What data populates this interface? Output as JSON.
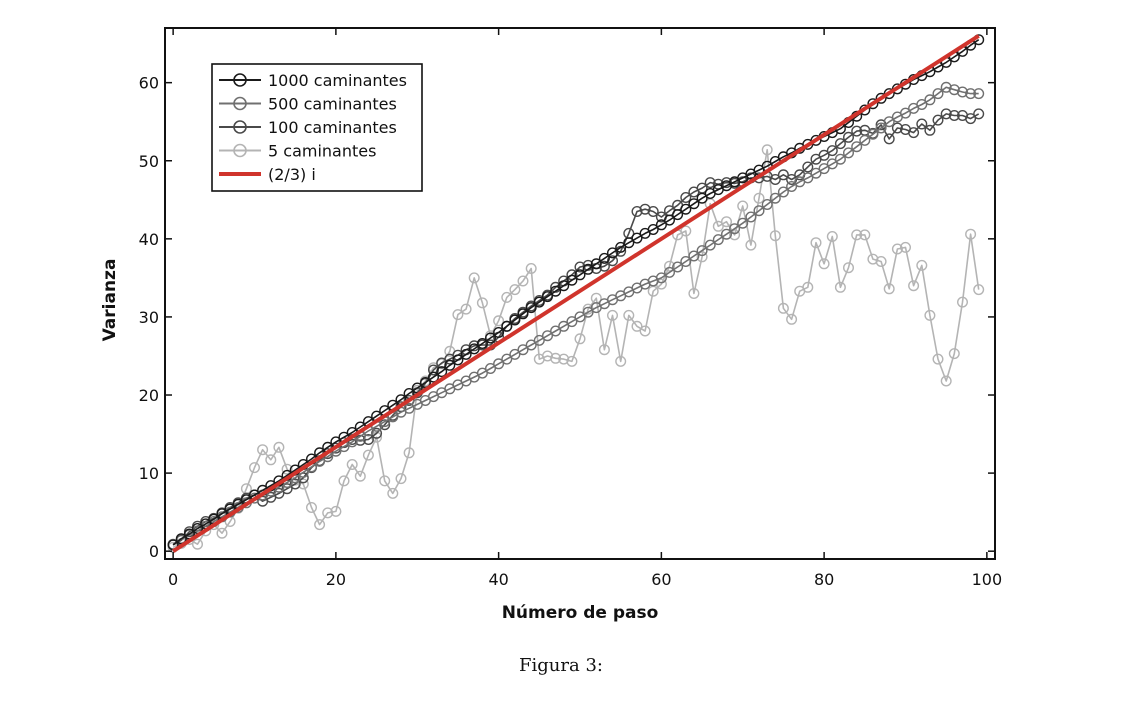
{
  "figure": {
    "caption": "Figura 3:"
  },
  "chart_data": {
    "type": "line",
    "xlabel": "Número de paso",
    "ylabel": "Varianza",
    "xlim": [
      -1,
      101
    ],
    "ylim": [
      -1,
      67
    ],
    "xticks": [
      0,
      20,
      40,
      60,
      80,
      100
    ],
    "yticks": [
      0,
      10,
      20,
      30,
      40,
      50,
      60
    ],
    "grid": false,
    "legend_position": "top-left",
    "series": [
      {
        "name": "1000 caminantes",
        "color": "#1a1a1a",
        "marker": "circle",
        "marker_fill": "none",
        "x": [
          0,
          1,
          2,
          3,
          4,
          5,
          6,
          7,
          8,
          9,
          10,
          11,
          12,
          13,
          14,
          15,
          16,
          17,
          18,
          19,
          20,
          21,
          22,
          23,
          24,
          25,
          26,
          27,
          28,
          29,
          30,
          31,
          32,
          33,
          34,
          35,
          36,
          37,
          38,
          39,
          40,
          41,
          42,
          43,
          44,
          45,
          46,
          47,
          48,
          49,
          50,
          51,
          52,
          53,
          54,
          55,
          56,
          57,
          58,
          59,
          60,
          61,
          62,
          63,
          64,
          65,
          66,
          67,
          68,
          69,
          70,
          71,
          72,
          73,
          74,
          75,
          76,
          77,
          78,
          79,
          80,
          81,
          82,
          83,
          84,
          85,
          86,
          87,
          88,
          89,
          90,
          91,
          92,
          93,
          94,
          95,
          96,
          97,
          98,
          99
        ],
        "y": [
          0.8,
          1.6,
          2.2,
          2.9,
          3.5,
          4.1,
          4.8,
          5.4,
          6.0,
          6.6,
          7.2,
          7.8,
          8.4,
          9.0,
          9.7,
          10.4,
          11.1,
          11.8,
          12.6,
          13.3,
          14.0,
          14.6,
          15.2,
          15.9,
          16.6,
          17.3,
          18.0,
          18.7,
          19.4,
          20.2,
          20.9,
          21.6,
          22.3,
          23.0,
          23.8,
          24.5,
          25.2,
          25.9,
          26.6,
          27.3,
          28.0,
          28.8,
          29.6,
          30.4,
          31.2,
          31.9,
          32.6,
          33.3,
          34.0,
          34.7,
          35.4,
          36.1,
          36.8,
          37.5,
          38.2,
          38.9,
          39.5,
          40.1,
          40.7,
          41.2,
          41.8,
          42.4,
          43.1,
          43.8,
          44.5,
          45.2,
          45.8,
          46.3,
          46.8,
          47.3,
          47.8,
          48.3,
          48.8,
          49.3,
          49.9,
          50.5,
          51.0,
          51.6,
          52.1,
          52.6,
          53.1,
          53.6,
          54.1,
          54.9,
          55.7,
          56.5,
          57.3,
          58.0,
          58.6,
          59.2,
          59.8,
          60.4,
          60.9,
          61.4,
          62.0,
          62.6,
          63.3,
          64.0,
          64.8,
          65.5
        ]
      },
      {
        "name": "500 caminantes",
        "color": "#707070",
        "marker": "circle",
        "marker_fill": "none",
        "x": [
          0,
          1,
          2,
          3,
          4,
          5,
          6,
          7,
          8,
          9,
          10,
          11,
          12,
          13,
          14,
          15,
          16,
          17,
          18,
          19,
          20,
          21,
          22,
          23,
          24,
          25,
          26,
          27,
          28,
          29,
          30,
          31,
          32,
          33,
          34,
          35,
          36,
          37,
          38,
          39,
          40,
          41,
          42,
          43,
          44,
          45,
          46,
          47,
          48,
          49,
          50,
          51,
          52,
          53,
          54,
          55,
          56,
          57,
          58,
          59,
          60,
          61,
          62,
          63,
          64,
          65,
          66,
          67,
          68,
          69,
          70,
          71,
          72,
          73,
          74,
          75,
          76,
          77,
          78,
          79,
          80,
          81,
          82,
          83,
          84,
          85,
          86,
          87,
          88,
          89,
          90,
          91,
          92,
          93,
          94,
          95,
          96,
          97,
          98,
          99
        ],
        "y": [
          0.9,
          1.5,
          2.1,
          2.6,
          3.2,
          3.8,
          4.4,
          5.0,
          5.6,
          6.2,
          6.8,
          7.2,
          7.7,
          8.2,
          8.8,
          9.4,
          10.1,
          10.8,
          11.5,
          12.1,
          12.8,
          13.4,
          14.0,
          14.7,
          15.4,
          16.0,
          16.6,
          17.2,
          17.8,
          18.3,
          18.8,
          19.3,
          19.8,
          20.3,
          20.8,
          21.3,
          21.8,
          22.3,
          22.8,
          23.4,
          24.0,
          24.6,
          25.2,
          25.8,
          26.4,
          27.0,
          27.6,
          28.2,
          28.8,
          29.4,
          30.0,
          30.6,
          31.2,
          31.7,
          32.2,
          32.7,
          33.2,
          33.7,
          34.2,
          34.6,
          35.0,
          35.7,
          36.4,
          37.1,
          37.8,
          38.5,
          39.2,
          39.9,
          40.6,
          41.3,
          42.0,
          42.8,
          43.6,
          44.4,
          45.2,
          46.0,
          46.7,
          47.3,
          47.8,
          48.4,
          49.0,
          49.6,
          50.2,
          51.0,
          51.8,
          52.6,
          53.4,
          54.2,
          55.0,
          55.6,
          56.1,
          56.7,
          57.2,
          57.8,
          58.6,
          59.4,
          59.1,
          58.8,
          58.6,
          58.6
        ]
      },
      {
        "name": "100 caminantes",
        "color": "#4a4a4a",
        "marker": "circle",
        "marker_fill": "none",
        "x": [
          0,
          1,
          2,
          3,
          4,
          5,
          6,
          7,
          8,
          9,
          10,
          11,
          12,
          13,
          14,
          15,
          16,
          17,
          18,
          19,
          20,
          21,
          22,
          23,
          24,
          25,
          26,
          27,
          28,
          29,
          30,
          31,
          32,
          33,
          34,
          35,
          36,
          37,
          38,
          39,
          40,
          41,
          42,
          43,
          44,
          45,
          46,
          47,
          48,
          49,
          50,
          51,
          52,
          53,
          54,
          55,
          56,
          57,
          58,
          59,
          60,
          61,
          62,
          63,
          64,
          65,
          66,
          67,
          68,
          69,
          70,
          71,
          72,
          73,
          74,
          75,
          76,
          77,
          78,
          79,
          80,
          81,
          82,
          83,
          84,
          85,
          86,
          87,
          88,
          89,
          90,
          91,
          92,
          93,
          94,
          95,
          96,
          97,
          98,
          99
        ],
        "y": [
          0.8,
          1.4,
          2.5,
          3.2,
          3.8,
          4.2,
          4.9,
          5.6,
          6.2,
          6.8,
          7.2,
          6.4,
          6.9,
          7.4,
          8.0,
          8.6,
          9.4,
          10.7,
          11.6,
          12.5,
          13.2,
          13.9,
          14.3,
          14.2,
          14.3,
          15.1,
          16.2,
          17.4,
          18.5,
          19.3,
          20.3,
          21.5,
          23.2,
          24.1,
          24.6,
          25.1,
          25.8,
          26.3,
          26.4,
          26.4,
          27.4,
          28.8,
          29.8,
          30.6,
          31.4,
          32.1,
          32.8,
          33.8,
          34.6,
          35.4,
          36.4,
          36.6,
          36.2,
          36.5,
          37.2,
          38.4,
          40.7,
          43.5,
          43.8,
          43.5,
          42.8,
          43.6,
          44.3,
          45.3,
          46.0,
          46.5,
          47.2,
          47.0,
          47.2,
          47.1,
          47.3,
          47.8,
          47.8,
          48.0,
          47.6,
          48.2,
          47.6,
          48.2,
          49.2,
          50.2,
          50.7,
          51.3,
          52.2,
          53.0,
          53.8,
          53.9,
          53.5,
          54.6,
          52.8,
          54.2,
          54.0,
          53.6,
          54.7,
          53.9,
          55.2,
          56.0,
          55.8,
          55.8,
          55.4,
          56.0
        ]
      },
      {
        "name": "5 caminantes",
        "color": "#b4b4b4",
        "marker": "circle",
        "marker_fill": "none",
        "x": [
          0,
          1,
          2,
          3,
          4,
          5,
          6,
          7,
          8,
          9,
          10,
          11,
          12,
          13,
          14,
          15,
          16,
          17,
          18,
          19,
          20,
          21,
          22,
          23,
          24,
          25,
          26,
          27,
          28,
          29,
          30,
          31,
          32,
          33,
          34,
          35,
          36,
          37,
          38,
          39,
          40,
          41,
          42,
          43,
          44,
          45,
          46,
          47,
          48,
          49,
          50,
          51,
          52,
          53,
          54,
          55,
          56,
          57,
          58,
          59,
          60,
          61,
          62,
          63,
          64,
          65,
          66,
          67,
          68,
          69,
          70,
          71,
          72,
          73,
          74,
          75,
          76,
          77,
          78,
          79,
          80,
          81,
          82,
          83,
          84,
          85,
          86,
          87,
          88,
          89,
          90,
          91,
          92,
          93,
          94,
          95,
          96,
          97,
          98,
          99
        ],
        "y": [
          0.5,
          1.0,
          1.5,
          0.9,
          2.6,
          3.4,
          2.3,
          3.8,
          5.5,
          8.0,
          10.7,
          13.0,
          11.7,
          13.3,
          10.5,
          9.1,
          8.6,
          5.6,
          3.4,
          4.9,
          5.1,
          9.0,
          11.1,
          9.6,
          12.3,
          14.6,
          9.0,
          7.4,
          9.3,
          12.6,
          20.6,
          21.8,
          23.5,
          24.0,
          25.6,
          30.3,
          31.0,
          35.0,
          31.8,
          27.6,
          29.5,
          32.5,
          33.5,
          34.6,
          36.2,
          24.6,
          25.0,
          24.7,
          24.6,
          24.3,
          27.2,
          31.0,
          32.4,
          25.8,
          30.2,
          24.3,
          30.2,
          28.8,
          28.2,
          33.3,
          34.2,
          36.5,
          40.5,
          41.0,
          33.0,
          37.7,
          44.5,
          41.6,
          42.2,
          40.5,
          44.2,
          39.2,
          45.2,
          51.4,
          40.4,
          31.1,
          29.7,
          33.3,
          33.8,
          39.5,
          36.8,
          40.3,
          33.8,
          36.3,
          40.5,
          40.5,
          37.4,
          37.1,
          33.6,
          38.7,
          38.9,
          34.0,
          36.6,
          30.2,
          24.6,
          21.8,
          25.3,
          31.9,
          40.6,
          33.5
        ]
      },
      {
        "name": "(2/3) i",
        "color": "#d0342c",
        "marker": "none",
        "x": [
          0,
          99
        ],
        "y": [
          0,
          66
        ]
      }
    ]
  }
}
